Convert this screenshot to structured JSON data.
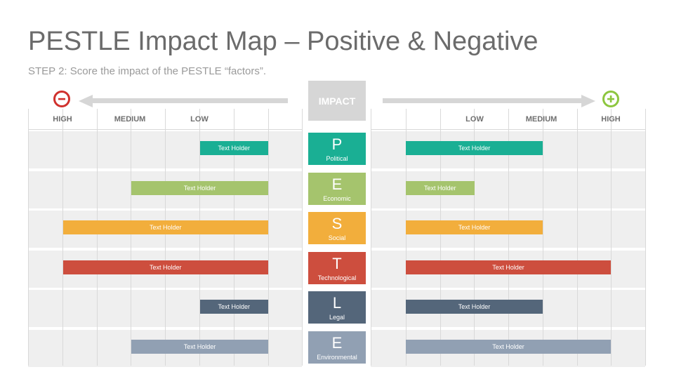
{
  "title": "PESTLE Impact Map – Positive & Negative",
  "subtitle": "STEP 2: Score the impact of the PESTLE “factors”.",
  "impact_label": "IMPACT",
  "icons": {
    "negative": "minus-circle-icon",
    "positive": "plus-circle-icon"
  },
  "colors": {
    "negative": "#d0312d",
    "positive": "#8dc63f",
    "arrow": "#d6d6d6"
  },
  "scale_left": [
    "HIGH",
    "MEDIUM",
    "LOW"
  ],
  "scale_right": [
    "LOW",
    "MEDIUM",
    "HIGH"
  ],
  "factors": [
    {
      "letter": "P",
      "name": "Political",
      "color": "#1aaf94",
      "negative": {
        "label": "Text Holder",
        "level": 1
      },
      "positive": {
        "label": "Text Holder",
        "level": 2
      }
    },
    {
      "letter": "E",
      "name": "Economic",
      "color": "#a5c46d",
      "negative": {
        "label": "Text Holder",
        "level": 2
      },
      "positive": {
        "label": "Text Holder",
        "level": 1
      }
    },
    {
      "letter": "S",
      "name": "Social",
      "color": "#f2ae3c",
      "negative": {
        "label": "Text Holder",
        "level": 3
      },
      "positive": {
        "label": "Text Holder",
        "level": 2
      }
    },
    {
      "letter": "T",
      "name": "Technological",
      "color": "#cd4e3e",
      "negative": {
        "label": "Text Holder",
        "level": 3
      },
      "positive": {
        "label": "Text Holder",
        "level": 3
      }
    },
    {
      "letter": "L",
      "name": "Legal",
      "color": "#54667a",
      "negative": {
        "label": "Text Holder",
        "level": 1
      },
      "positive": {
        "label": "Text Holder",
        "level": 2
      }
    },
    {
      "letter": "E",
      "name": "Environmental",
      "color": "#91a0b3",
      "negative": {
        "label": "Text Holder",
        "level": 2
      },
      "positive": {
        "label": "Text Holder",
        "level": 3
      }
    }
  ]
}
